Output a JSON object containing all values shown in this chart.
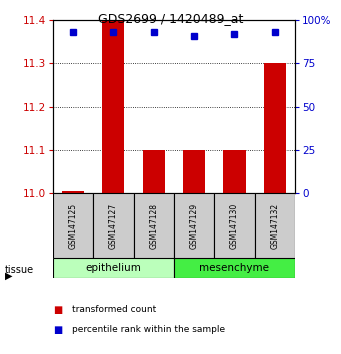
{
  "title": "GDS2699 / 1420489_at",
  "samples": [
    "GSM147125",
    "GSM147127",
    "GSM147128",
    "GSM147129",
    "GSM147130",
    "GSM147132"
  ],
  "bar_values": [
    11.005,
    11.4,
    11.1,
    11.1,
    11.1,
    11.3
  ],
  "bar_baseline": 11.0,
  "percentile_values": [
    93,
    93,
    93,
    91,
    92,
    93
  ],
  "ylim_left": [
    11.0,
    11.4
  ],
  "ylim_right": [
    0,
    100
  ],
  "yticks_left": [
    11.0,
    11.1,
    11.2,
    11.3,
    11.4
  ],
  "yticks_right": [
    0,
    25,
    50,
    75,
    100
  ],
  "ytick_labels_right": [
    "0",
    "25",
    "50",
    "75",
    "100%"
  ],
  "bar_color": "#cc0000",
  "percentile_color": "#0000cc",
  "groups": [
    {
      "label": "epithelium",
      "start": 0,
      "end": 2,
      "color": "#bbffbb"
    },
    {
      "label": "mesenchyme",
      "start": 3,
      "end": 5,
      "color": "#44ee44"
    }
  ],
  "tissue_label": "tissue",
  "legend_bar_label": "transformed count",
  "legend_pct_label": "percentile rank within the sample",
  "background_color": "#ffffff",
  "tick_label_color_left": "#cc0000",
  "tick_label_color_right": "#0000cc",
  "bar_width": 0.55,
  "sample_box_color": "#cccccc"
}
